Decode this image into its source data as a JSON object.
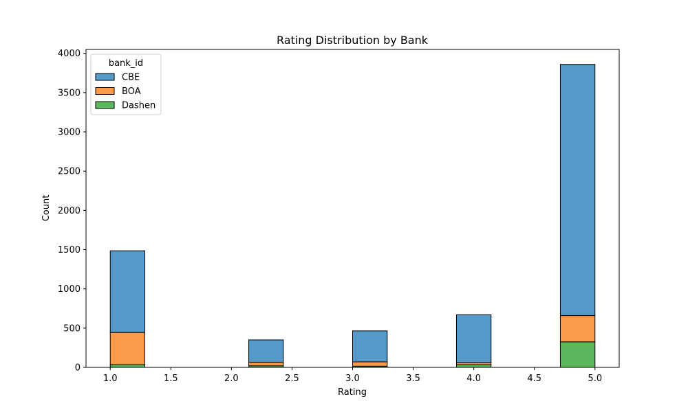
{
  "chart_data": {
    "type": "bar",
    "stacked": true,
    "title": "Rating Distribution by Bank",
    "xlabel": "Rating",
    "ylabel": "Count",
    "xlim": [
      0.8,
      5.2
    ],
    "ylim": [
      0,
      4050
    ],
    "xticks": [
      "1.0",
      "1.5",
      "2.0",
      "2.5",
      "3.0",
      "3.5",
      "4.0",
      "4.5",
      "5.0"
    ],
    "yticks": [
      "0",
      "500",
      "1000",
      "1500",
      "2000",
      "2500",
      "3000",
      "3500",
      "4000"
    ],
    "bin_width": 0.2857,
    "bin_starts": [
      1.0,
      2.1429,
      3.0,
      3.8571,
      4.7143
    ],
    "legend_title": "bank_id",
    "legend_position": "top-left",
    "grid": false,
    "series": [
      {
        "name": "Dashen",
        "color": "#5cb85c",
        "values": [
          35,
          20,
          15,
          35,
          325
        ]
      },
      {
        "name": "BOA",
        "color": "#fb9a48",
        "values": [
          410,
          45,
          55,
          25,
          335
        ]
      },
      {
        "name": "CBE",
        "color": "#5499c7",
        "values": [
          1040,
          285,
          395,
          610,
          3200
        ]
      }
    ],
    "legend_order": [
      "CBE",
      "BOA",
      "Dashen"
    ]
  }
}
